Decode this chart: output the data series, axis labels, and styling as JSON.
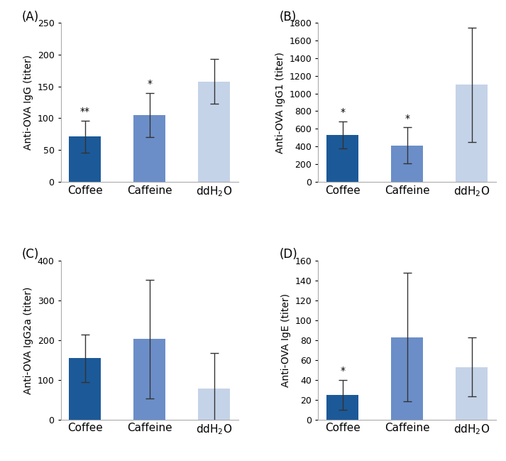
{
  "panels": [
    {
      "label": "(A)",
      "ylabel": "Anti-OVA IgG (titer)",
      "categories": [
        "Coffee",
        "Caffeine",
        "ddH₂O"
      ],
      "values": [
        71,
        105,
        158
      ],
      "errors": [
        25,
        35,
        35
      ],
      "ylim": [
        0,
        250
      ],
      "yticks": [
        0,
        50,
        100,
        150,
        200,
        250
      ],
      "significance": [
        "**",
        "*",
        ""
      ],
      "colors": [
        "#1c5998",
        "#6b8ec8",
        "#c5d3e8"
      ]
    },
    {
      "label": "(B)",
      "ylabel": "Anti-OVA IgG1 (titer)",
      "categories": [
        "Coffee",
        "Caffeine",
        "ddH₂O"
      ],
      "values": [
        530,
        410,
        1100
      ],
      "errors": [
        155,
        205,
        650
      ],
      "ylim": [
        0,
        1800
      ],
      "yticks": [
        0,
        200,
        400,
        600,
        800,
        1000,
        1200,
        1400,
        1600,
        1800
      ],
      "significance": [
        "*",
        "*",
        ""
      ],
      "colors": [
        "#1c5998",
        "#6b8ec8",
        "#c5d3e8"
      ]
    },
    {
      "label": "(C)",
      "ylabel": "Anti-OVA IgG2a (titer)",
      "categories": [
        "Coffee",
        "Caffeine",
        "ddH₂O"
      ],
      "values": [
        155,
        203,
        78
      ],
      "errors": [
        60,
        150,
        90
      ],
      "ylim": [
        0,
        400
      ],
      "yticks": [
        0,
        100,
        200,
        300,
        400
      ],
      "significance": [
        "",
        "",
        ""
      ],
      "colors": [
        "#1c5998",
        "#6b8ec8",
        "#c5d3e8"
      ]
    },
    {
      "label": "(D)",
      "ylabel": "Anti-OVA IgE (titer)",
      "categories": [
        "Coffee",
        "Caffeine",
        "ddH₂O"
      ],
      "values": [
        25,
        83,
        53
      ],
      "errors": [
        15,
        65,
        30
      ],
      "ylim": [
        0,
        160
      ],
      "yticks": [
        0,
        20,
        40,
        60,
        80,
        100,
        120,
        140,
        160
      ],
      "significance": [
        "*",
        "",
        ""
      ],
      "colors": [
        "#1c5998",
        "#6b8ec8",
        "#c5d3e8"
      ]
    }
  ],
  "bar_width": 0.5,
  "capsize": 4,
  "error_color": "#333333",
  "sig_fontsize": 10,
  "ylabel_fontsize": 10,
  "tick_fontsize": 9,
  "xtick_fontsize": 11,
  "panel_label_fontsize": 12
}
